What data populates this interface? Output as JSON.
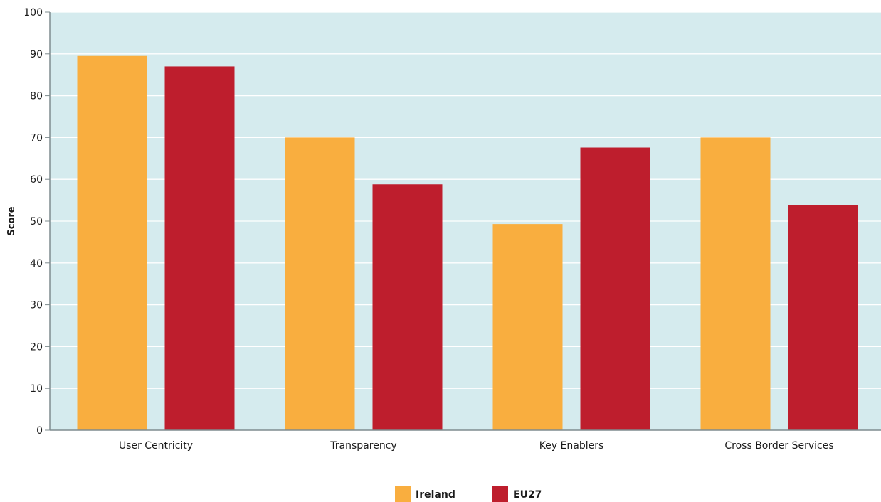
{
  "chart_data": {
    "type": "bar",
    "ylabel": "Score",
    "xlabel": "",
    "ylim": [
      0,
      100
    ],
    "yticks": [
      0,
      10,
      20,
      30,
      40,
      50,
      60,
      70,
      80,
      90,
      100
    ],
    "grid": true,
    "legend_position": "bottom-center",
    "categories": [
      "User Centricity",
      "Transparency",
      "Key Enablers",
      "Cross Border Services"
    ],
    "series": [
      {
        "name": "Ireland",
        "color": "#F9AE3F",
        "values": [
          89.5,
          70,
          49.3,
          70
        ]
      },
      {
        "name": "EU27",
        "color": "#BE1E2D",
        "values": [
          87,
          58.8,
          67.6,
          53.9
        ]
      }
    ]
  }
}
